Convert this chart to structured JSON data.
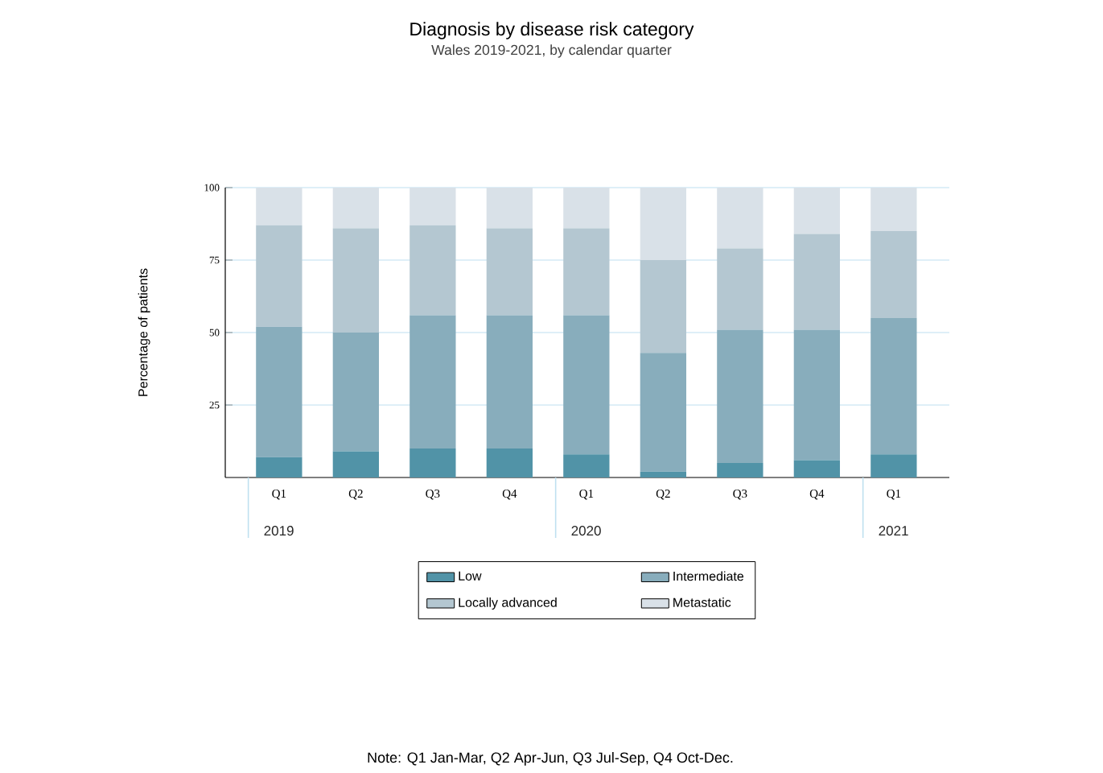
{
  "chart_data": {
    "type": "bar",
    "title": "Diagnosis by disease risk category",
    "subtitle": "Wales 2019-2021, by calendar quarter",
    "ylabel": "Percentage of patients",
    "categories": [
      "Q1",
      "Q2",
      "Q3",
      "Q4",
      "Q1",
      "Q2",
      "Q3",
      "Q4",
      "Q1"
    ],
    "series": [
      {
        "name": "Low",
        "color": "#5193a7",
        "values": [
          7,
          9,
          10,
          10,
          8,
          2,
          5,
          6,
          8
        ]
      },
      {
        "name": "Intermediate",
        "color": "#88adbc",
        "values": [
          45,
          41,
          46,
          46,
          48,
          41,
          46,
          45,
          47
        ]
      },
      {
        "name": "Locally advanced",
        "color": "#b4c7d1",
        "values": [
          35,
          36,
          31,
          30,
          30,
          32,
          28,
          33,
          30
        ]
      },
      {
        "name": "Metastatic",
        "color": "#d9e1e8",
        "values": [
          13,
          14,
          13,
          14,
          14,
          25,
          21,
          16,
          15
        ]
      }
    ],
    "stacked": true,
    "ylim": [
      0,
      100
    ],
    "yticks": [
      25,
      50,
      75,
      100
    ],
    "grid": "y",
    "legend": "bottom",
    "annotations": [
      "2019",
      "2020",
      "2021",
      "Note: Q1 Jan-Mar, Q2 Apr-Jun, Q3 Jul-Sep, Q4 Oct-Dec."
    ]
  }
}
